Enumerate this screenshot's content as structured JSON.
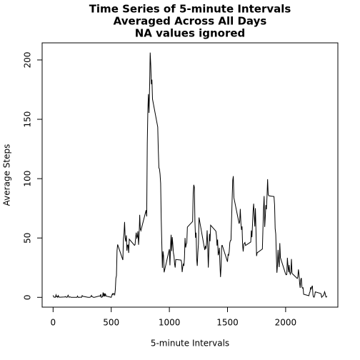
{
  "chart_data": {
    "type": "line",
    "title": [
      "Time Series of 5-minute Intervals",
      "Averaged Across All Days",
      "NA values ignored"
    ],
    "x_label": "5-minute Intervals",
    "y_label": "Average Steps",
    "x": [
      0,
      5,
      10,
      15,
      20,
      25,
      30,
      35,
      40,
      45,
      50,
      55,
      100,
      105,
      110,
      115,
      120,
      125,
      130,
      135,
      140,
      145,
      150,
      155,
      200,
      205,
      210,
      215,
      220,
      225,
      230,
      235,
      240,
      245,
      250,
      255,
      300,
      305,
      310,
      315,
      320,
      325,
      330,
      335,
      340,
      345,
      350,
      355,
      400,
      405,
      410,
      415,
      420,
      425,
      430,
      435,
      440,
      445,
      450,
      455,
      500,
      505,
      510,
      515,
      520,
      525,
      530,
      535,
      540,
      545,
      550,
      555,
      600,
      605,
      610,
      615,
      620,
      625,
      630,
      635,
      640,
      645,
      650,
      655,
      700,
      705,
      710,
      715,
      720,
      725,
      730,
      735,
      740,
      745,
      750,
      755,
      800,
      805,
      810,
      815,
      820,
      825,
      830,
      835,
      840,
      845,
      850,
      855,
      900,
      905,
      910,
      915,
      920,
      925,
      930,
      935,
      940,
      945,
      950,
      955,
      1000,
      1005,
      1010,
      1015,
      1020,
      1025,
      1030,
      1035,
      1040,
      1045,
      1050,
      1055,
      1100,
      1105,
      1110,
      1115,
      1120,
      1125,
      1130,
      1135,
      1140,
      1145,
      1150,
      1155,
      1200,
      1205,
      1210,
      1215,
      1220,
      1225,
      1230,
      1235,
      1240,
      1245,
      1250,
      1255,
      1300,
      1305,
      1310,
      1315,
      1320,
      1325,
      1330,
      1335,
      1340,
      1345,
      1350,
      1355,
      1400,
      1405,
      1410,
      1415,
      1420,
      1425,
      1430,
      1435,
      1440,
      1445,
      1450,
      1455,
      1500,
      1505,
      1510,
      1515,
      1520,
      1525,
      1530,
      1535,
      1540,
      1545,
      1550,
      1555,
      1600,
      1605,
      1610,
      1615,
      1620,
      1625,
      1630,
      1635,
      1640,
      1645,
      1650,
      1655,
      1700,
      1705,
      1710,
      1715,
      1720,
      1725,
      1730,
      1735,
      1740,
      1745,
      1750,
      1755,
      1800,
      1805,
      1810,
      1815,
      1820,
      1825,
      1830,
      1835,
      1840,
      1845,
      1850,
      1855,
      1900,
      1905,
      1910,
      1915,
      1920,
      1925,
      1930,
      1935,
      1940,
      1945,
      1950,
      1955,
      2000,
      2005,
      2010,
      2015,
      2020,
      2025,
      2030,
      2035,
      2040,
      2045,
      2050,
      2055,
      2100,
      2105,
      2110,
      2115,
      2120,
      2125,
      2130,
      2135,
      2140,
      2145,
      2150,
      2155,
      2200,
      2205,
      2210,
      2215,
      2220,
      2225,
      2230,
      2235,
      2240,
      2245,
      2250,
      2255,
      2300,
      2305,
      2310,
      2315,
      2320,
      2325,
      2330,
      2335,
      2340,
      2345,
      2350,
      2355
    ],
    "series": [
      {
        "color": "#000000",
        "values": [
          1.7,
          0.3,
          0.1,
          0.2,
          0.1,
          2.1,
          0.5,
          0.9,
          0,
          1.5,
          0.3,
          0.1,
          0.3,
          0.7,
          0.2,
          0.3,
          0,
          1.1,
          1.8,
          0.2,
          0.2,
          0.4,
          0.3,
          0,
          0,
          0,
          1.1,
          0,
          0,
          0.1,
          0,
          0.2,
          0,
          0,
          1.5,
          0.9,
          0,
          0,
          0,
          0,
          0.2,
          0.6,
          1.6,
          0.6,
          0.5,
          0.1,
          0,
          0,
          1.2,
          0.9,
          2.6,
          0,
          0.3,
          0.4,
          4.1,
          0.7,
          3.5,
          0.8,
          3.1,
          1.1,
          0,
          1.6,
          3,
          2.2,
          3.3,
          3,
          2.1,
          6.1,
          16,
          18.3,
          39.5,
          44.5,
          31.5,
          49.3,
          53.8,
          63.5,
          50,
          47.1,
          52.2,
          39.3,
          44,
          44.2,
          37.4,
          49,
          43.8,
          44.4,
          50.5,
          54.5,
          49.9,
          51,
          55.7,
          44.3,
          52.3,
          69.5,
          57.8,
          56.2,
          73.4,
          68.2,
          129.4,
          157.5,
          171.2,
          155.4,
          177.3,
          206.2,
          195.9,
          179.6,
          183.4,
          167,
          143.5,
          124,
          109.1,
          108.1,
          103.7,
          96,
          66.2,
          45.2,
          24.8,
          38.8,
          35,
          21.1,
          40.6,
          27,
          42.4,
          52.7,
          38.9,
          50.8,
          44.3,
          37.4,
          34.7,
          28.3,
          25.1,
          31.9,
          31.4,
          29.7,
          21.3,
          25.5,
          28.4,
          26.5,
          33.4,
          50,
          42,
          44.6,
          46,
          59.2,
          63.9,
          87.7,
          94.8,
          92.8,
          63.4,
          50.2,
          54.5,
          32.4,
          26.5,
          37.7,
          45,
          67.3,
          42.3,
          39.9,
          43.3,
          41,
          46.2,
          56.4,
          42.8,
          25.1,
          40,
          53.5,
          47.3,
          60.8,
          55.8,
          52,
          43.6,
          48.7,
          35.5,
          37.5,
          41.8,
          27.5,
          17.1,
          26.1,
          43.6,
          43.8,
          30,
          36.1,
          35.5,
          38.8,
          46,
          47.8,
          48.1,
          65.3,
          82.9,
          98.7,
          102.1,
          84,
          62.1,
          64.1,
          74.5,
          63.2,
          56.9,
          59.8,
          43.9,
          38.6,
          44.7,
          45.5,
          46.2,
          43.7,
          46.6,
          56.3,
          50.7,
          61.2,
          72.7,
          78.9,
          68.9,
          59.7,
          75.1,
          56.5,
          34.8,
          37.5,
          40.7,
          58,
          74.7,
          85.3,
          59.3,
          67.8,
          77.7,
          74.2,
          85.3,
          99.5,
          86.6,
          85.6,
          84.9,
          77.8,
          58,
          53.4,
          36.3,
          20.7,
          27.4,
          40,
          30.2,
          25.5,
          45.7,
          33.5,
          19.6,
          19,
          19.3,
          33.3,
          26.8,
          21.2,
          27.3,
          21.3,
          19.5,
          21.3,
          32.3,
          20.2,
          15.9,
          17.2,
          23.5,
          19.2,
          12.5,
          8,
          14.7,
          16.3,
          8.7,
          7.8,
          8.1,
          2.6,
          1.4,
          3.7,
          4.8,
          8.5,
          7.1,
          8.7,
          9.8,
          2.2,
          0.3,
          0.1,
          1.6,
          4.6,
          3.3,
          2.8,
          0,
          0.8,
          1,
          1.6,
          2.6,
          4.7,
          3.3,
          0.6,
          0.2,
          1.1
        ]
      }
    ],
    "xlim": [
      -94.2,
      2449.2
    ],
    "ylim": [
      -8.25,
      214.4
    ],
    "xticks": [
      0,
      500,
      1000,
      1500,
      2000
    ],
    "yticks": [
      0,
      50,
      100,
      150,
      200
    ]
  }
}
